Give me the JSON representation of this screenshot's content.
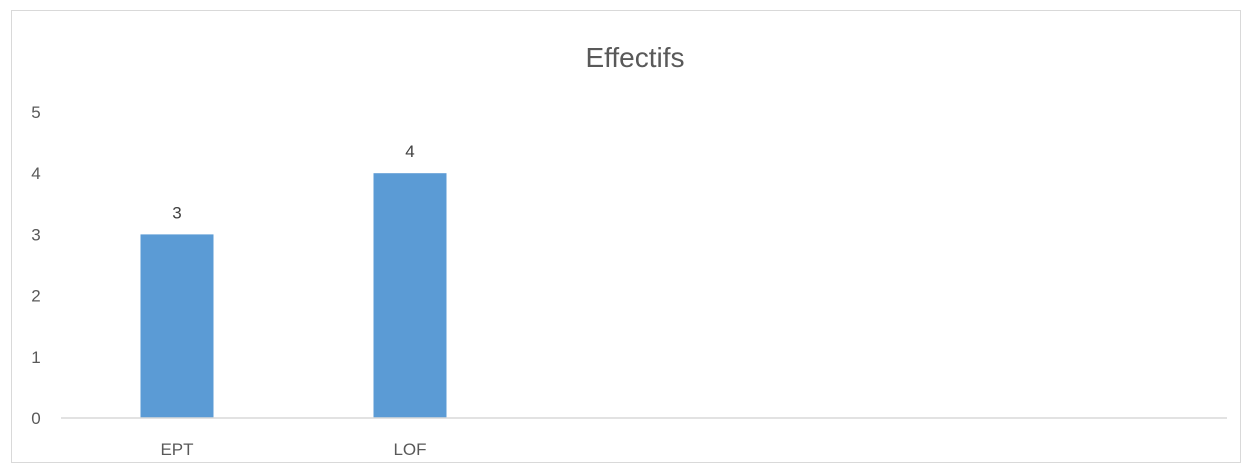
{
  "chart_data": {
    "type": "bar",
    "title": "Effectifs",
    "xlabel": "",
    "ylabel": "",
    "categories": [
      "EPT",
      "LOF"
    ],
    "values": [
      3,
      4
    ],
    "ylim": [
      0,
      5
    ],
    "yticks": [
      "0",
      "1",
      "2",
      "3",
      "4",
      "5"
    ],
    "data_labels": [
      "3",
      "4"
    ],
    "grid": false,
    "legend": "none",
    "bar_color": "#5b9bd5",
    "axis_color": "#d9d9d9",
    "text_color": "#595959"
  }
}
